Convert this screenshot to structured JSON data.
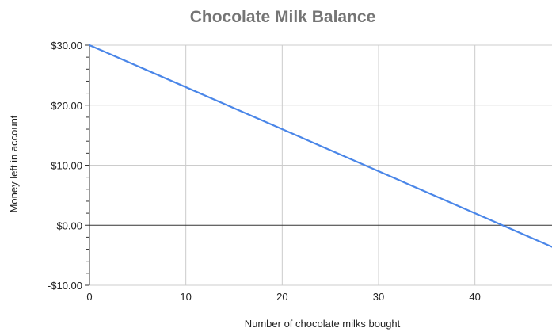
{
  "chart_data": {
    "type": "line",
    "title": "Chocolate Milk Balance",
    "xlabel": "Number of chocolate milks bought",
    "ylabel": "Money left in account",
    "xlim": [
      0,
      48
    ],
    "ylim": [
      -10,
      30
    ],
    "x_ticks": [
      {
        "value": 0,
        "label": "0"
      },
      {
        "value": 10,
        "label": "10"
      },
      {
        "value": 20,
        "label": "20"
      },
      {
        "value": 30,
        "label": "30"
      },
      {
        "value": 40,
        "label": "40"
      }
    ],
    "y_ticks": [
      {
        "value": 30,
        "label": "$30.00"
      },
      {
        "value": 20,
        "label": "$20.00"
      },
      {
        "value": 10,
        "label": "$10.00"
      },
      {
        "value": 0,
        "label": "$0.00"
      },
      {
        "value": -10,
        "label": "-$10.00"
      }
    ],
    "y_minor_step": 2,
    "grid": true,
    "series": [
      {
        "color": "#4a86e8",
        "x": [
          0,
          48
        ],
        "y": [
          30,
          -3.6
        ]
      }
    ]
  }
}
